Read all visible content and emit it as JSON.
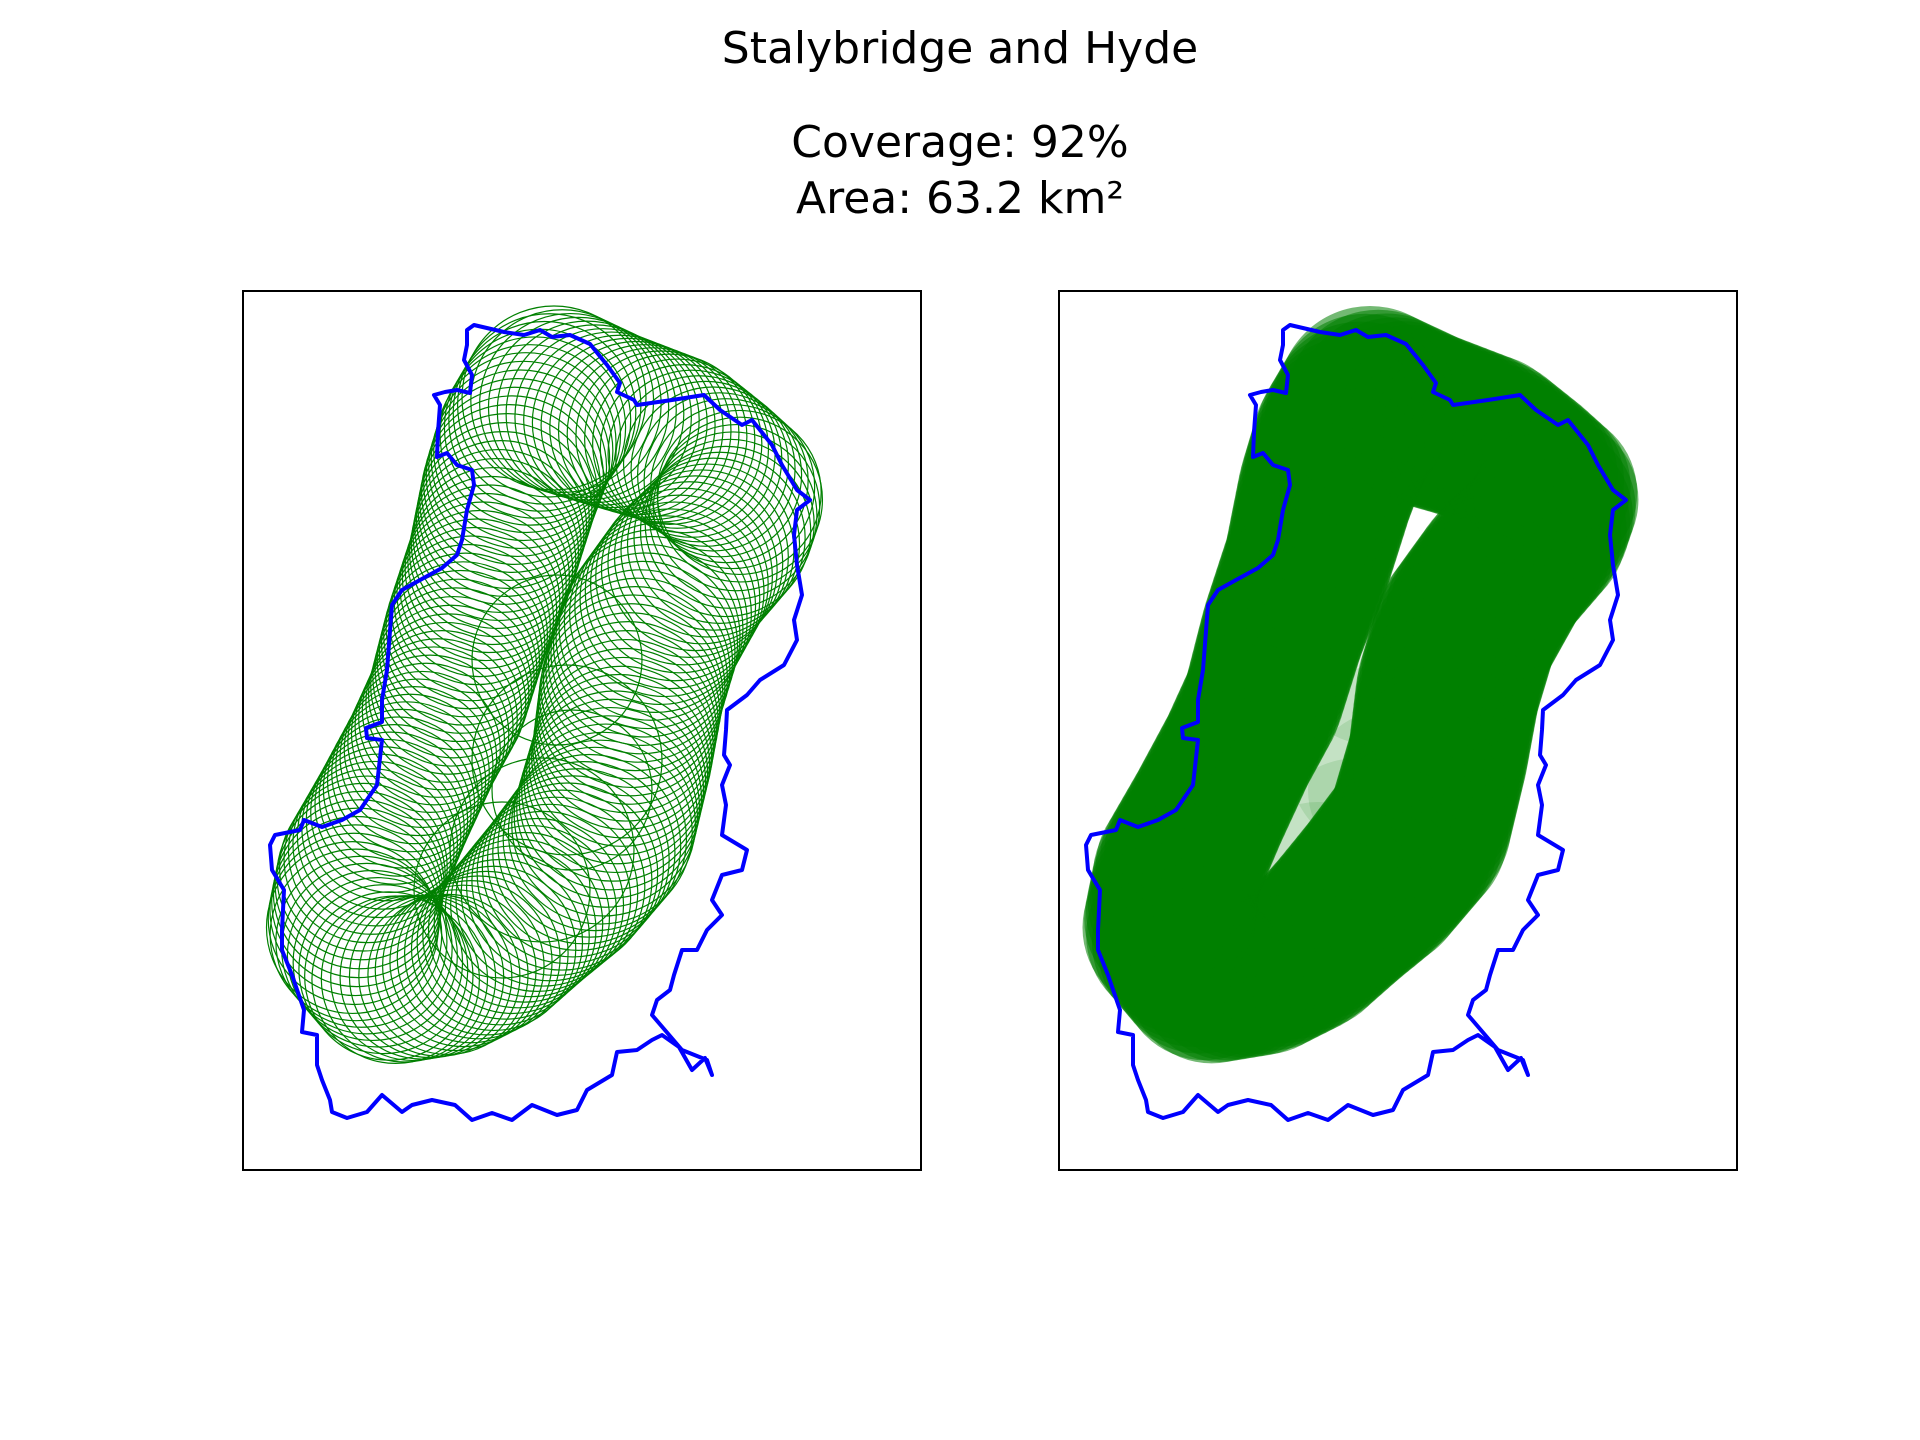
{
  "header": {
    "title": "Stalybridge and Hyde",
    "coverage_text": "Coverage: 92%",
    "area_text": "Area: 63.2 km²"
  },
  "map": {
    "region_name": "Stalybridge and Hyde",
    "coverage_percent": 92,
    "area_km2": 63.2,
    "panels": [
      "circle-outlines",
      "filled-coverage"
    ]
  },
  "colors": {
    "boundary": "#0000ff",
    "coverage": "#008000",
    "frame": "#000000",
    "background": "#ffffff"
  }
}
